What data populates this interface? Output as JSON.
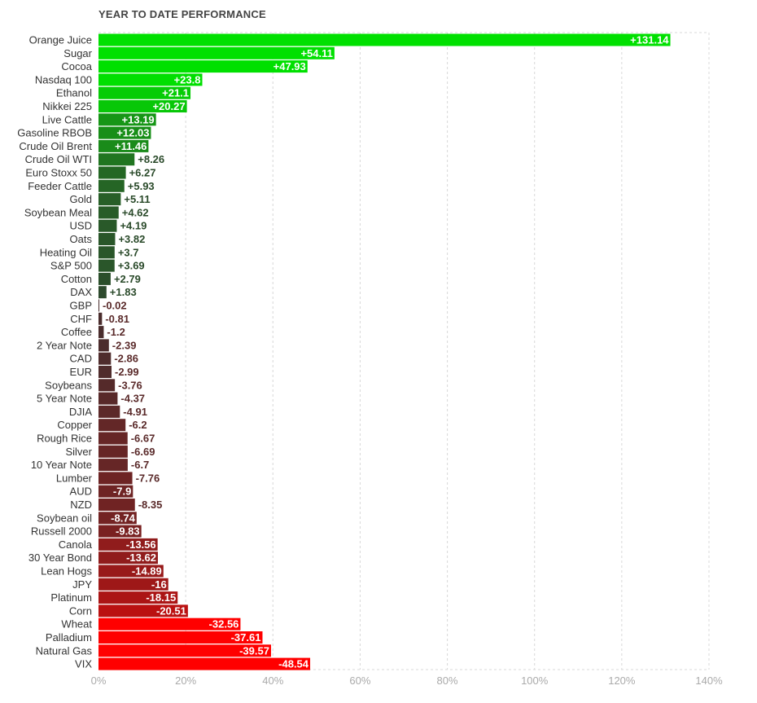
{
  "chart_data": {
    "type": "bar",
    "orientation": "horizontal",
    "title": "YEAR TO DATE PERFORMANCE",
    "xlabel": "",
    "ylabel": "",
    "xlim": [
      0,
      140
    ],
    "x_ticks": [
      0,
      20,
      40,
      60,
      80,
      100,
      120,
      140
    ],
    "x_tick_labels": [
      "0%",
      "20%",
      "40%",
      "60%",
      "80%",
      "100%",
      "120%",
      "140%"
    ],
    "grid": true,
    "legend": "none",
    "categories": [
      "Orange Juice",
      "Sugar",
      "Cocoa",
      "Nasdaq 100",
      "Ethanol",
      "Nikkei 225",
      "Live Cattle",
      "Gasoline RBOB",
      "Crude Oil Brent",
      "Crude Oil WTI",
      "Euro Stoxx 50",
      "Feeder Cattle",
      "Gold",
      "Soybean Meal",
      "USD",
      "Oats",
      "Heating Oil",
      "S&P 500",
      "Cotton",
      "DAX",
      "GBP",
      "CHF",
      "Coffee",
      "2 Year Note",
      "CAD",
      "EUR",
      "Soybeans",
      "5 Year Note",
      "DJIA",
      "Copper",
      "Rough Rice",
      "Silver",
      "10 Year Note",
      "Lumber",
      "AUD",
      "NZD",
      "Soybean oil",
      "Russell 2000",
      "Canola",
      "30 Year Bond",
      "Lean Hogs",
      "JPY",
      "Platinum",
      "Corn",
      "Wheat",
      "Palladium",
      "Natural Gas",
      "VIX"
    ],
    "values": [
      131.14,
      54.11,
      47.93,
      23.8,
      21.1,
      20.27,
      13.19,
      12.03,
      11.46,
      8.26,
      6.27,
      5.93,
      5.11,
      4.62,
      4.19,
      3.82,
      3.7,
      3.69,
      2.79,
      1.83,
      -0.02,
      -0.81,
      -1.2,
      -2.39,
      -2.86,
      -2.99,
      -3.76,
      -4.37,
      -4.91,
      -6.2,
      -6.67,
      -6.69,
      -6.7,
      -7.76,
      -7.9,
      -8.35,
      -8.74,
      -9.83,
      -13.56,
      -13.62,
      -14.89,
      -16,
      -18.15,
      -20.51,
      -32.56,
      -37.61,
      -39.57,
      -48.54
    ],
    "value_labels": [
      "+131.14",
      "+54.11",
      "+47.93",
      "+23.8",
      "+21.1",
      "+20.27",
      "+13.19",
      "+12.03",
      "+11.46",
      "+8.26",
      "+6.27",
      "+5.93",
      "+5.11",
      "+4.62",
      "+4.19",
      "+3.82",
      "+3.7",
      "+3.69",
      "+2.79",
      "+1.83",
      "-0.02",
      "-0.81",
      "-1.2",
      "-2.39",
      "-2.86",
      "-2.99",
      "-3.76",
      "-4.37",
      "-4.91",
      "-6.2",
      "-6.67",
      "-6.69",
      "-6.7",
      "-7.76",
      "-7.9",
      "-8.35",
      "-8.74",
      "-9.83",
      "-13.56",
      "-13.62",
      "-14.89",
      "-16",
      "-18.15",
      "-20.51",
      "-32.56",
      "-37.61",
      "-39.57",
      "-48.54"
    ],
    "bar_length": "absolute value",
    "colors": {
      "positive_bright": "#00e000",
      "positive_dark": "#2d4a2d",
      "negative_dark": "#4a2d2d",
      "negative_bright": "#ff0000",
      "label_dark_positive": "#2a4a2a",
      "label_dark_negative": "#5a2a2a",
      "label_on_bar": "#ffffff",
      "grid": "#d8d8d8",
      "tick_text": "#aaaaaa",
      "category_text": "#333333"
    }
  }
}
